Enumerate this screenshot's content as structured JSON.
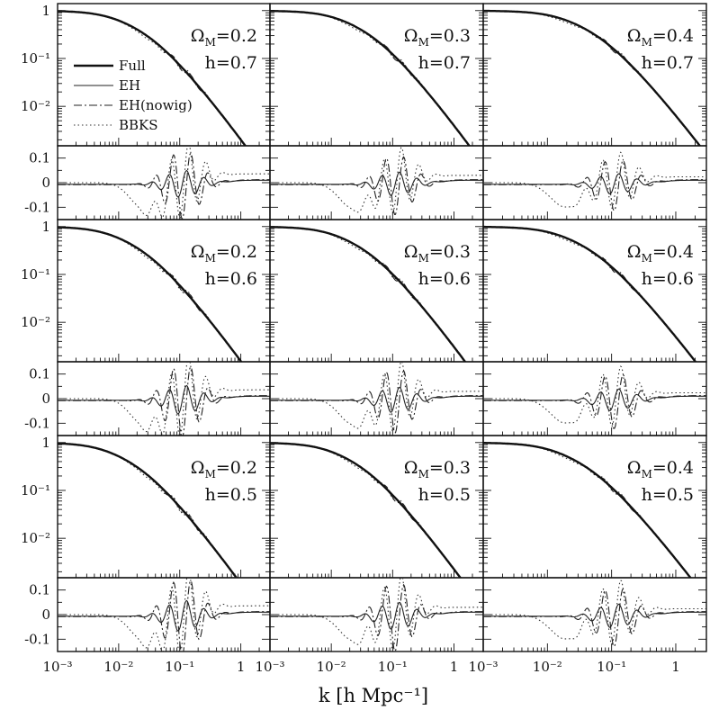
{
  "chart_data": {
    "type": "line",
    "layout": "3x3 grid of paired panels (transfer function on top, residual below)",
    "xlabel": "k [h Mpc⁻¹]",
    "xscale": "log",
    "xlim": [
      0.001,
      3
    ],
    "x_tick_labels": [
      [
        "10⁻³",
        "10⁻²",
        "10⁻¹",
        "1"
      ],
      [
        "10⁻³",
        "10⁻²",
        "10⁻¹",
        "1"
      ],
      [
        "10⁻³",
        "10⁻²",
        "10⁻¹",
        "1"
      ]
    ],
    "top_panel": {
      "yscale": "log",
      "ylim": [
        0.0015,
        1.4
      ],
      "y_tick_labels": [
        "1",
        "10⁻¹",
        "10⁻²"
      ]
    },
    "bottom_panel": {
      "yscale": "linear",
      "ylim": [
        -0.15,
        0.15
      ],
      "y_tick_labels": [
        "0.1",
        "0",
        "-0.1"
      ]
    },
    "legend": {
      "position": "upper-left panel, left side",
      "entries": [
        {
          "label": "Full",
          "style": "thick-solid"
        },
        {
          "label": "EH",
          "style": "thin-solid"
        },
        {
          "label": "EH(nowig)",
          "style": "dash-dot"
        },
        {
          "label": "BBKS",
          "style": "dotted"
        }
      ]
    },
    "panels": [
      {
        "omega_text": "Ω",
        "omega_sub": "M",
        "omega_value": "=0.2",
        "h_text": "h=0.7",
        "omega_m": 0.2,
        "h": 0.7
      },
      {
        "omega_text": "Ω",
        "omega_sub": "M",
        "omega_value": "=0.3",
        "h_text": "h=0.7",
        "omega_m": 0.3,
        "h": 0.7
      },
      {
        "omega_text": "Ω",
        "omega_sub": "M",
        "omega_value": "=0.4",
        "h_text": "h=0.7",
        "omega_m": 0.4,
        "h": 0.7
      },
      {
        "omega_text": "Ω",
        "omega_sub": "M",
        "omega_value": "=0.2",
        "h_text": "h=0.6",
        "omega_m": 0.2,
        "h": 0.6
      },
      {
        "omega_text": "Ω",
        "omega_sub": "M",
        "omega_value": "=0.3",
        "h_text": "h=0.6",
        "omega_m": 0.3,
        "h": 0.6
      },
      {
        "omega_text": "Ω",
        "omega_sub": "M",
        "omega_value": "=0.4",
        "h_text": "h=0.6",
        "omega_m": 0.4,
        "h": 0.6
      },
      {
        "omega_text": "Ω",
        "omega_sub": "M",
        "omega_value": "=0.2",
        "h_text": "h=0.5",
        "omega_m": 0.2,
        "h": 0.5
      },
      {
        "omega_text": "Ω",
        "omega_sub": "M",
        "omega_value": "=0.3",
        "h_text": "h=0.5",
        "omega_m": 0.3,
        "h": 0.5
      },
      {
        "omega_text": "Ω",
        "omega_sub": "M",
        "omega_value": "=0.4",
        "h_text": "h=0.5",
        "omega_m": 0.4,
        "h": 0.5
      }
    ],
    "series_styles": {
      "Full": {
        "color": "#111111",
        "dash": "",
        "stroke": "thick"
      },
      "EH": {
        "color": "#222222",
        "dash": "",
        "stroke": "thin"
      },
      "EH(nowig)": {
        "color": "#222222",
        "dash": "9,3,2,3",
        "stroke": "thin"
      },
      "BBKS": {
        "color": "#333333",
        "dash": "1.5,3",
        "stroke": "thin"
      }
    }
  }
}
